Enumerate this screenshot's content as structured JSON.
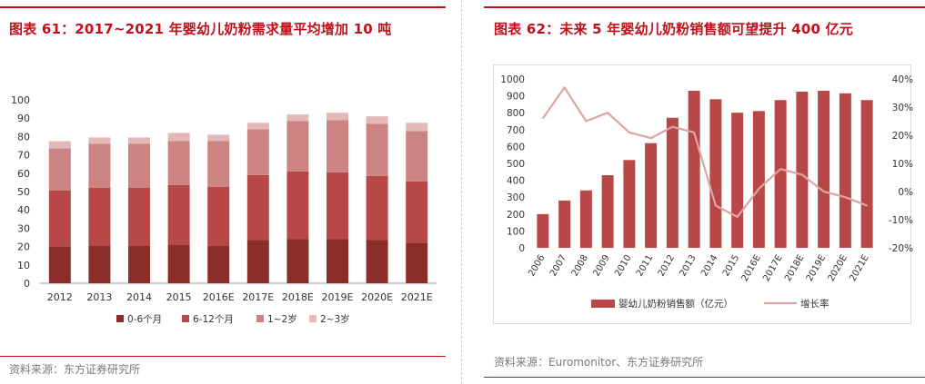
{
  "left": {
    "title": "图表 61：2017~2021 年婴幼儿奶粉需求量平均增加 10 吨",
    "source": "资料来源：东方证券研究所"
  },
  "right": {
    "title": "图表 62：未来 5 年婴幼儿奶粉销售额可望提升 400 亿元",
    "source": "资料来源：Euromonitor、东方证券研究所"
  },
  "colors": {
    "accent": "#c0101c",
    "seg1": "#8b2e2a",
    "seg2": "#b84747",
    "seg3": "#cc8482",
    "seg4": "#e3b8b8",
    "bar": "#b84747",
    "line": "#dba5a0"
  },
  "chart_data": [
    {
      "type": "bar",
      "stacked": true,
      "categories": [
        "2012",
        "2013",
        "2014",
        "2015",
        "2016E",
        "2017E",
        "2018E",
        "2019E",
        "2020E",
        "2021E"
      ],
      "series": [
        {
          "name": "0-6个月",
          "values": [
            20,
            20.5,
            20.5,
            21,
            20.5,
            23.5,
            24,
            24,
            23.5,
            22
          ]
        },
        {
          "name": "6-12个月",
          "values": [
            30.5,
            31.5,
            31.5,
            32.5,
            32,
            35.5,
            37,
            36.5,
            35,
            33.5
          ]
        },
        {
          "name": "1~2岁",
          "values": [
            23,
            24,
            24,
            24,
            25,
            25,
            27.5,
            28.5,
            28.5,
            27.5
          ]
        },
        {
          "name": "2~3岁",
          "values": [
            4,
            3.5,
            3.5,
            4.5,
            3.5,
            3.5,
            3.5,
            4,
            4,
            4.5
          ]
        }
      ],
      "yticks": [
        0,
        10,
        20,
        30,
        40,
        50,
        60,
        70,
        80,
        90,
        100
      ],
      "ylim": [
        0,
        100
      ],
      "legend_position": "bottom"
    },
    {
      "type": "bar",
      "categories": [
        "2006",
        "2007",
        "2008",
        "2009",
        "2010",
        "2011",
        "2012",
        "2013",
        "2014",
        "2015",
        "2016E",
        "2017E",
        "2018E",
        "2019E",
        "2020E",
        "2021E"
      ],
      "series": [
        {
          "name": "婴幼儿奶粉销售额（亿元）",
          "type": "bar",
          "axis": "left",
          "values": [
            200,
            280,
            340,
            430,
            520,
            620,
            770,
            930,
            880,
            800,
            810,
            875,
            925,
            930,
            915,
            875
          ]
        },
        {
          "name": "增长率",
          "type": "line",
          "axis": "right",
          "values": [
            26,
            37,
            25,
            28,
            21,
            19,
            23,
            21,
            -5,
            -9,
            1,
            8,
            6,
            0,
            -2,
            -5
          ]
        }
      ],
      "yticks_left": [
        "0",
        "100",
        "200",
        "300",
        "400",
        "500",
        "600",
        "700",
        "800",
        "900",
        "1000"
      ],
      "yticks_right": [
        "-20%",
        "-10%",
        "0%",
        "10%",
        "20%",
        "30%",
        "40%"
      ],
      "ylim_left": [
        0,
        1000
      ],
      "ylim_right": [
        -20,
        40
      ],
      "legend_position": "bottom"
    }
  ]
}
